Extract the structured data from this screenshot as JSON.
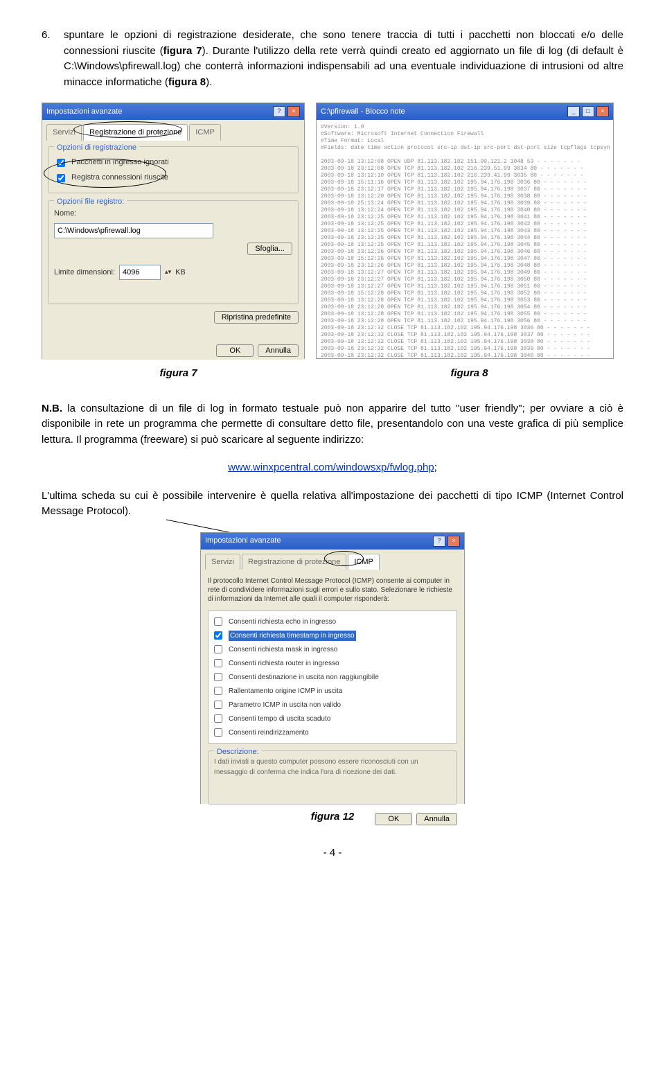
{
  "item6": {
    "number": "6.",
    "text_part1": "spuntare le opzioni di registrazione desiderate, che sono tenere traccia di tutti i pacchetti non bloccati e/o delle connessioni riuscite (",
    "bold1": "figura 7",
    "text_part2": "). Durante l'utilizzo della rete verrà quindi creato ed aggiornato un file di log (di default è C:\\Windows\\pfirewall.log) che conterrà informazioni indispensabili ad una eventuale individuazione di intrusioni od altre minacce informatiche (",
    "bold2": "figura 8",
    "text_part3": ")."
  },
  "fig7": {
    "title": "Impostazioni avanzate",
    "tab1": "Servizi",
    "tab2": "Registrazione di protezione",
    "tab3": "ICMP",
    "group1_title": "Opzioni di registrazione",
    "chk1": "Pacchetti in ingresso ignorati",
    "chk2": "Registra connessioni riuscite",
    "group2_title": "Opzioni file registro:",
    "name_label": "Nome:",
    "name_value": "C:\\Windows\\pfirewall.log",
    "browse_btn": "Sfoglia...",
    "size_label": "Limite dimensioni:",
    "size_value": "4096",
    "size_unit": "KB",
    "restore_btn": "Ripristina predefinite",
    "ok_btn": "OK",
    "cancel_btn": "Annulla"
  },
  "fig8": {
    "title": "C:\\pfirewall - Blocco note",
    "header1": "#Version: 1.0",
    "header2": "#Software: Microsoft Internet Connection Firewall",
    "header3": "#Time Format: Local",
    "header4": "#Fields: date time action protocol src-ip dst-ip src-port dst-port size tcpflags tcpsyn tcpa",
    "log_lines": [
      "2003-09-18 13:12:08 OPEN UDP 81.113.182.102 151.99.121.2 1048 53 - - - - - - -",
      "2003-09-18 23:12:08 OPEN TCP 81.113.182.102 216.239.51.99 3034 80 - - - - - - -",
      "2003-09-18 13:12:10 OPEN TCP 81.113.182.102 216.239.41.99 3035 80 - - - - - - -",
      "2003-09-18 15:11:16 OPEN TCP 81.113.182.102 195.94.176.198 3036 80 - - - - - - -",
      "2003-09-18 23:12:17 OPEN TCP 81.113.182.102 195.94.176.198 3037 80 - - - - - - -",
      "2003-09-18 13:12:20 OPEN TCP 81.113.182.102 195.94.176.198 3038 80 - - - - - - -",
      "2003-09-18 25:13:24 OPEN TCP 81.113.182.102 195.94.176.198 3039 80 - - - - - - -",
      "2003-09-18 13:12:24 OPEN TCP 81.113.182.102 195.94.176.198 3040 80 - - - - - - -",
      "2003-09-18 23:12:25 OPEN TCP 81.113.182.102 195.94.176.198 3041 80 - - - - - - -",
      "2003-09-18 13:12:25 OPEN TCP 81.113.182.102 195.94.176.198 3042 80 - - - - - - -",
      "2003-09-18 13:12:25 OPEN TCP 81.113.182.102 195.94.176.198 3043 80 - - - - - - -",
      "2003-09-18 23:12:25 OPEN TCP 81.113.182.102 195.94.176.198 3044 80 - - - - - - -",
      "2003-09-18 13:12:25 OPEN TCP 81.113.182.102 195.94.176.198 3045 80 - - - - - - -",
      "2003-09-18 23:12:26 OPEN TCP 81.113.182.102 195.94.176.198 3046 80 - - - - - - -",
      "2003-09-18 15:12:26 OPEN TCP 81.113.182.102 195.94.176.198 3047 80 - - - - - - -",
      "2003-09-18 23:12:26 OPEN TCP 81.113.182.102 195.94.176.198 3048 80 - - - - - - -",
      "2003-09-18 13:12:27 OPEN TCP 81.113.182.102 195.94.176.198 3049 80 - - - - - - -",
      "2003-09-18 23:12:27 OPEN TCP 81.113.182.102 195.94.176.198 3050 80 - - - - - - -",
      "2003-09-18 13:12:27 OPEN TCP 81.113.182.102 195.94.176.198 3051 80 - - - - - - -",
      "2003-09-18 15:12:28 OPEN TCP 81.113.182.102 195.94.176.198 3052 80 - - - - - - -",
      "2003-09-18 13:12:28 OPEN TCP 81.113.182.102 195.94.176.198 3053 80 - - - - - - -",
      "2003-09-18 23:12:28 OPEN TCP 81.113.182.102 195.94.176.198 3054 80 - - - - - - -",
      "2003-09-18 13:12:28 OPEN TCP 81.113.182.102 195.94.176.198 3055 80 - - - - - - -",
      "2003-09-18 23:12:28 OPEN TCP 81.113.182.102 195.94.176.198 3056 80 - - - - - - -",
      "2003-09-18 23:12:32 CLOSE TCP 81.113.182.102 195.94.176.198 3036 80 - - - - - - -",
      "2003-09-18 23:12:32 CLOSE TCP 81.113.182.102 195.94.176.198 3037 80 - - - - - - -",
      "2003-09-18 13:12:32 CLOSE TCP 81.113.182.102 195.94.176.198 3038 80 - - - - - - -",
      "2003-09-18 23:12:32 CLOSE TCP 81.113.182.102 195.94.176.198 3039 80 - - - - - - -",
      "2003-09-18 23:12:32 CLOSE TCP 81.113.182.102 195.94.176.198 3040 80 - - - - - - -"
    ]
  },
  "cap7": "figura 7",
  "cap8": "figura 8",
  "nb_para": {
    "lead": "N.B.",
    "text": " la consultazione di un file di log in formato testuale può non apparire del tutto \"user friendly\"; per ovviare a ciò è disponibile in rete un programma che permette di consultare detto file, presentandolo con una veste grafica di più semplice lettura. Il programma (freeware) si può scaricare al seguente indirizzo:"
  },
  "link_text": "www.winxpcentral.com/windowsxp/fwlog.php",
  "link_suffix": ";",
  "last_para": "L'ultima scheda su cui è possibile intervenire è quella relativa all'impostazione dei pacchetti di tipo ICMP (Internet Control Message Protocol).",
  "fig12": {
    "title": "Impostazioni avanzate",
    "tab1": "Servizi",
    "tab2": "Registrazione di protezione",
    "tab3": "ICMP",
    "intro": "Il protocollo Internet Control Message Protocol (ICMP) consente ai computer in rete di condividere informazioni sugli errori e sullo stato. Selezionare le richieste di informazioni da Internet alle quali il computer risponderà:",
    "opts": [
      "Consenti richiesta echo in ingresso",
      "Consenti richiesta timestamp in ingresso",
      "Consenti richiesta mask in ingresso",
      "Consenti richiesta router in ingresso",
      "Consenti destinazione in uscita non raggiungibile",
      "Rallentamento origine ICMP in uscita",
      "Parametro ICMP in uscita non valido",
      "Consenti tempo di uscita scaduto",
      "Consenti reindirizzamento"
    ],
    "desc_title": "Descrizione:",
    "desc_text": "I dati inviati a questo computer possono essere riconosciuti con un messaggio di conferma che indica l'ora di ricezione dei dati.",
    "ok_btn": "OK",
    "cancel_btn": "Annulla"
  },
  "cap12": "figura 12",
  "pagenum": "- 4 -"
}
